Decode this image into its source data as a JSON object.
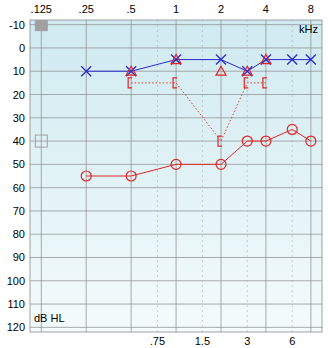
{
  "chart_data": {
    "type": "audiogram",
    "xlim": [
      0.105,
      9.5
    ],
    "ylim": [
      -12,
      122
    ],
    "log": "x",
    "grid": true,
    "xticks": [
      {
        "value": 0.125,
        "label": ".125"
      },
      {
        "value": 0.25,
        "label": ".25"
      },
      {
        "value": 0.5,
        "label": ".5"
      },
      1,
      2,
      4,
      8
    ],
    "x2ticks": [
      {
        "value": 0.75,
        "label": ".75"
      },
      1.5,
      3,
      6
    ],
    "yticks": [
      -10,
      0,
      10,
      20,
      30,
      40,
      50,
      60,
      70,
      80,
      90,
      100,
      110,
      120
    ],
    "x_label": "kHz",
    "y_label": "dB HL",
    "series": [
      {
        "color": "#2a2ad0",
        "marker": "x",
        "line_style": "solid",
        "x": [
          0.25,
          0.5,
          1,
          2,
          3,
          4,
          6,
          8
        ],
        "values": [
          10,
          10,
          5,
          5,
          10,
          5,
          5,
          5
        ]
      },
      {
        "color": "#dd2626",
        "marker": "circle",
        "line_style": "solid",
        "x": [
          0.25,
          0.5,
          1,
          2,
          3,
          4,
          6,
          8
        ],
        "values": [
          55,
          55,
          50,
          50,
          40,
          40,
          35,
          40
        ]
      },
      {
        "color": "#dd2626",
        "marker": "triangle",
        "line_style": "none",
        "x": [
          0.5,
          1,
          2,
          3,
          4
        ],
        "values": [
          10,
          5,
          10,
          10,
          5
        ]
      },
      {
        "color": "#dd2626",
        "marker": "bracket",
        "line_style": "dotted",
        "x": [
          0.5,
          1,
          2,
          3,
          4
        ],
        "values": [
          15,
          15,
          40,
          15,
          15
        ]
      },
      {
        "color": "#a0a0a0",
        "marker": "square",
        "line_style": "none",
        "x": [
          0.125
        ],
        "values": [
          -10
        ]
      },
      {
        "color": "#a0a0a0",
        "marker": "square_open",
        "line_style": "none",
        "x": [
          0.125
        ],
        "values": [
          40
        ]
      }
    ]
  }
}
